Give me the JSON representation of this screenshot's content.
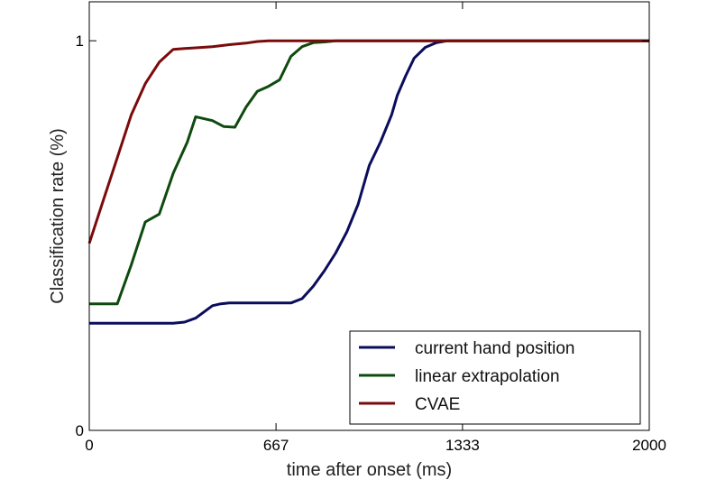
{
  "chart_data": {
    "type": "line",
    "title": "",
    "xlabel": "time after onset (ms)",
    "ylabel": "Classification rate (%)",
    "xlim": [
      0,
      2000
    ],
    "ylim": [
      0,
      1.1
    ],
    "xticks": [
      {
        "value": 0,
        "label": "0"
      },
      {
        "value": 667,
        "label": "667"
      },
      {
        "value": 1333,
        "label": "1333"
      },
      {
        "value": 2000,
        "label": "2000"
      }
    ],
    "yticks": [
      {
        "value": 0,
        "label": "0"
      },
      {
        "value": 1,
        "label": "1"
      }
    ],
    "grid": false,
    "legend_position": "bottom-right",
    "series": [
      {
        "name": "current hand position",
        "color": "#0b0d5c",
        "x": [
          0,
          50,
          100,
          150,
          200,
          250,
          300,
          340,
          380,
          440,
          470,
          500,
          550,
          600,
          650,
          700,
          720,
          760,
          800,
          840,
          880,
          920,
          960,
          1000,
          1040,
          1080,
          1100,
          1130,
          1160,
          1200,
          1240,
          1280,
          1320,
          1360,
          1400,
          1500,
          1600,
          1700,
          1800,
          1900,
          2000
        ],
        "values": [
          0.275,
          0.275,
          0.275,
          0.275,
          0.275,
          0.275,
          0.275,
          0.278,
          0.288,
          0.32,
          0.325,
          0.327,
          0.327,
          0.327,
          0.327,
          0.327,
          0.327,
          0.338,
          0.37,
          0.41,
          0.455,
          0.51,
          0.58,
          0.68,
          0.74,
          0.81,
          0.86,
          0.91,
          0.955,
          0.983,
          0.995,
          1.0,
          1.0,
          1.0,
          1.0,
          1.0,
          1.0,
          1.0,
          1.0,
          1.0,
          1.0
        ]
      },
      {
        "name": "linear extrapolation",
        "color": "#0e4a0e",
        "x": [
          0,
          50,
          100,
          150,
          200,
          250,
          300,
          350,
          380,
          440,
          480,
          520,
          560,
          600,
          640,
          680,
          720,
          760,
          800,
          840,
          880,
          920,
          960,
          1000,
          1100,
          1200,
          1300,
          1400,
          1500,
          1600,
          1700,
          1800,
          1900,
          2000
        ],
        "values": [
          0.325,
          0.325,
          0.325,
          0.425,
          0.535,
          0.555,
          0.66,
          0.74,
          0.805,
          0.795,
          0.78,
          0.778,
          0.83,
          0.87,
          0.883,
          0.9,
          0.96,
          0.985,
          0.995,
          0.997,
          1.0,
          1.0,
          1.0,
          1.0,
          1.0,
          1.0,
          1.0,
          1.0,
          1.0,
          1.0,
          1.0,
          1.0,
          1.0,
          1.0
        ]
      },
      {
        "name": "CVAE",
        "color": "#7a0b0b",
        "x": [
          0,
          50,
          100,
          150,
          200,
          250,
          300,
          340,
          380,
          440,
          500,
          560,
          600,
          640,
          680,
          720,
          800,
          900,
          1000,
          1200,
          1400,
          1600,
          1800,
          2000
        ],
        "values": [
          0.48,
          0.59,
          0.7,
          0.81,
          0.89,
          0.945,
          0.978,
          0.98,
          0.982,
          0.985,
          0.99,
          0.994,
          0.998,
          1.0,
          1.0,
          1.0,
          1.0,
          1.0,
          1.0,
          1.0,
          1.0,
          1.0,
          1.0,
          1.0
        ]
      }
    ]
  }
}
